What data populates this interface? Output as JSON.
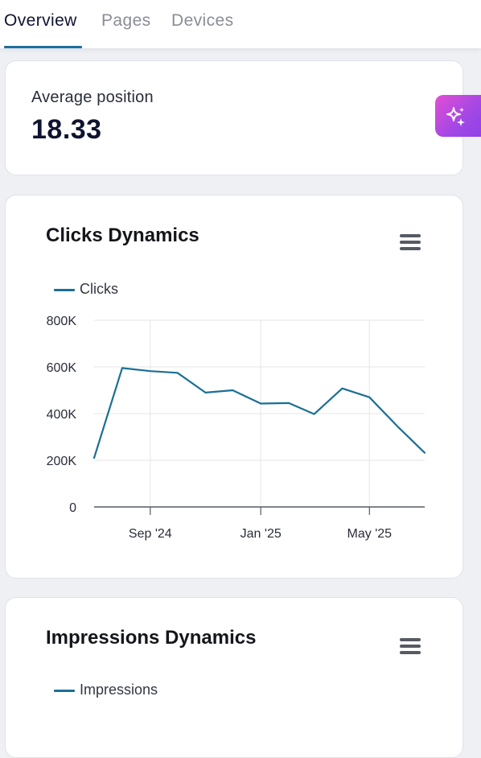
{
  "tabs": [
    {
      "label": "Overview",
      "active": true
    },
    {
      "label": "Pages",
      "active": false
    },
    {
      "label": "Devices",
      "active": false
    }
  ],
  "metric": {
    "label": "Average position",
    "value": "18.33"
  },
  "ai_button": {
    "icon": "sparkle-icon",
    "gradient": [
      "#e24fd3",
      "#8a3fe8"
    ]
  },
  "clicks_chart": {
    "title": "Clicks Dynamics",
    "menu_icon": "hamburger-menu-icon",
    "legend": "Clicks"
  },
  "impressions_chart": {
    "title": "Impressions Dynamics",
    "menu_icon": "hamburger-menu-icon",
    "legend": "Impressions"
  },
  "chart_data": {
    "type": "line",
    "title": "Clicks Dynamics",
    "x": [
      "2024-07-01",
      "2024-08-01",
      "2024-09-01",
      "2024-10-01",
      "2024-11-01",
      "2024-12-01",
      "2025-01-01",
      "2025-02-01",
      "2025-03-01",
      "2025-04-01",
      "2025-05-01",
      "2025-06-01",
      "2025-07-01"
    ],
    "series": [
      {
        "name": "Clicks",
        "color": "#1a6f95",
        "values": [
          210000,
          595000,
          582000,
          575000,
          490000,
          500000,
          443000,
          445000,
          398000,
          508000,
          470000,
          345000,
          232000
        ]
      }
    ],
    "xticks": [
      {
        "label": "Sep '24",
        "x": "2024-09-01"
      },
      {
        "label": "Jan '25",
        "x": "2025-01-01"
      },
      {
        "label": "May '25",
        "x": "2025-05-01"
      }
    ],
    "yticks": [
      {
        "label": "0",
        "value": 0
      },
      {
        "label": "200K",
        "value": 200000
      },
      {
        "label": "400K",
        "value": 400000
      },
      {
        "label": "600K",
        "value": 600000
      },
      {
        "label": "800K",
        "value": 800000
      }
    ],
    "ylim": [
      0,
      800000
    ],
    "grid": true,
    "legend_position": "top-left",
    "xlabel": "",
    "ylabel": ""
  }
}
